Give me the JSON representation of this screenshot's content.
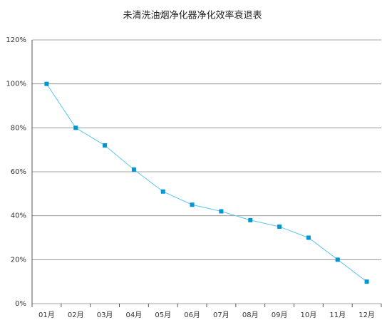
{
  "chart_data": {
    "type": "line",
    "title": "未清洗油烟净化器净化效率衰退表",
    "categories": [
      "01月",
      "02月",
      "03月",
      "04月",
      "05月",
      "06月",
      "07月",
      "08月",
      "09月",
      "10月",
      "11月",
      "12月"
    ],
    "series": [
      {
        "color": "#0096d6",
        "line_color": "#5bc5ee",
        "values": [
          100,
          80,
          72,
          61,
          51,
          45,
          42,
          38,
          35,
          30,
          20,
          10
        ]
      }
    ],
    "ylim": [
      0,
      120
    ],
    "yticks": [
      {
        "value": 0,
        "label": "0%"
      },
      {
        "value": 20,
        "label": "20%"
      },
      {
        "value": 40,
        "label": "40%"
      },
      {
        "value": 60,
        "label": "60%"
      },
      {
        "value": 80,
        "label": "80%"
      },
      {
        "value": 100,
        "label": "100%"
      },
      {
        "value": 120,
        "label": "120%"
      }
    ],
    "grid": true
  }
}
